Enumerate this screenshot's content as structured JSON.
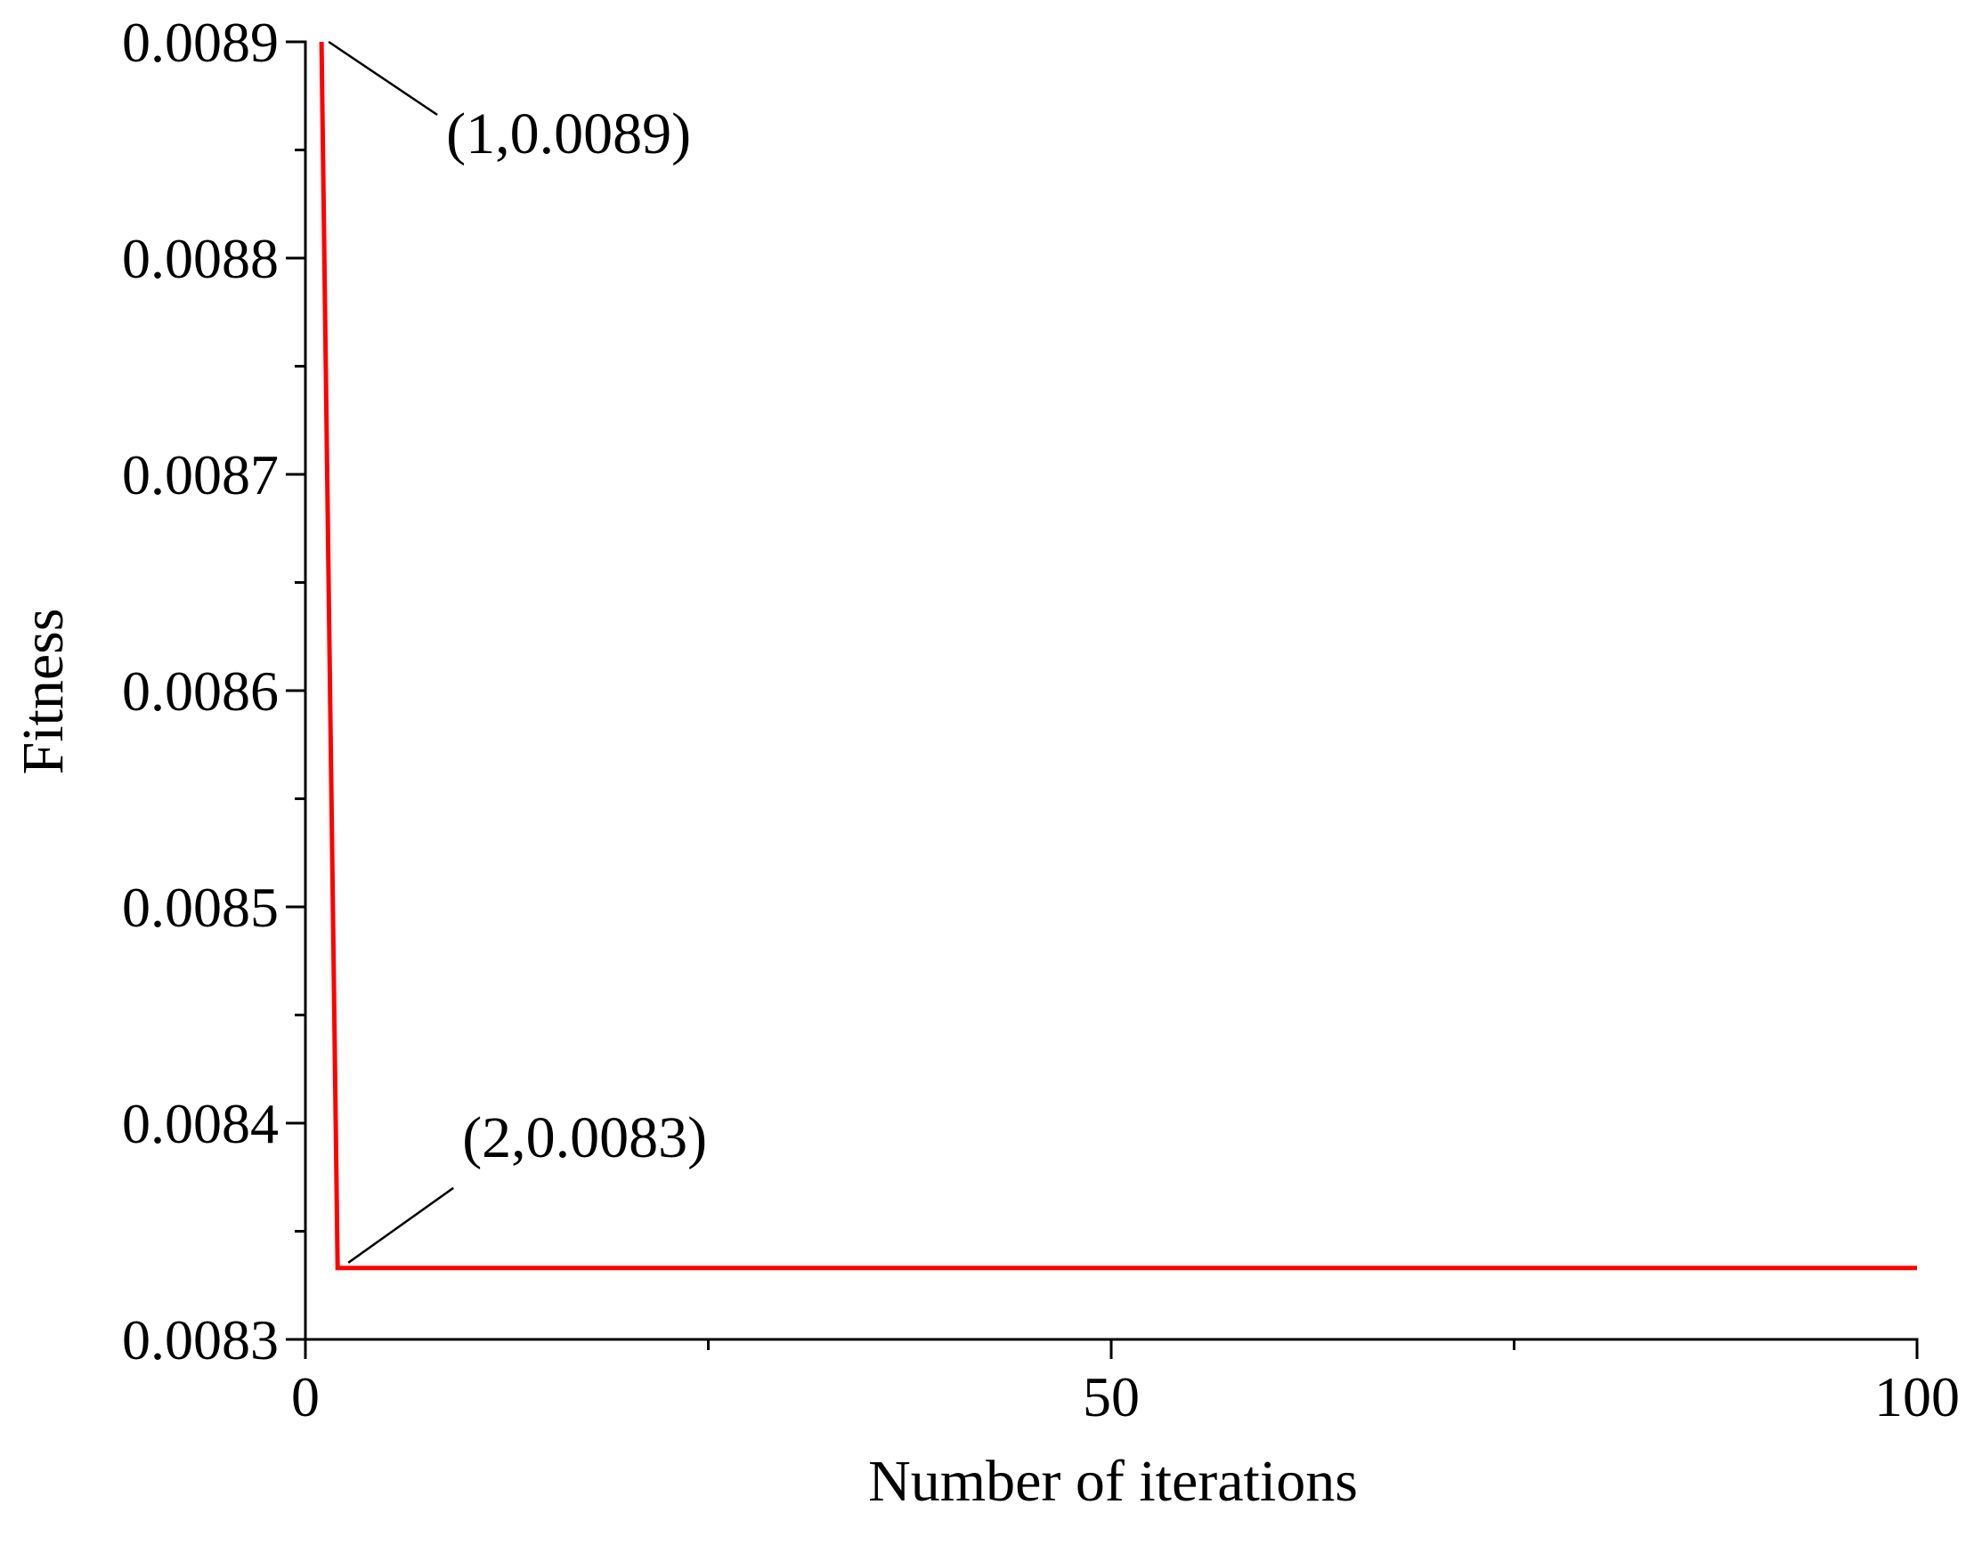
{
  "chart_data": {
    "type": "line",
    "title": "",
    "xlabel": "Number of iterations",
    "ylabel": "Fitness",
    "xlim": [
      0,
      100
    ],
    "ylim": [
      0.0083,
      0.0089
    ],
    "x_ticks": [
      0,
      50,
      100
    ],
    "x_tick_labels": [
      "0",
      "50",
      "100"
    ],
    "x_minor_ticks": [
      25,
      75
    ],
    "y_ticks": [
      0.0083,
      0.0084,
      0.0085,
      0.0086,
      0.0087,
      0.0088,
      0.0089
    ],
    "y_tick_labels": [
      "0.0083",
      "0.0084",
      "0.0085",
      "0.0086",
      "0.0087",
      "0.0088",
      "0.0089"
    ],
    "y_minor_ticks": [
      0.00835,
      0.00845,
      0.00855,
      0.00865,
      0.00875,
      0.00885
    ],
    "grid": false,
    "series": [
      {
        "color": "#ff0000",
        "x": [
          1,
          2,
          100
        ],
        "y": [
          0.0089,
          0.008333,
          0.008333
        ]
      }
    ],
    "annotations": [
      {
        "text": "(1,0.0089)",
        "point": [
          1,
          0.0089
        ]
      },
      {
        "text": "(2,0.0083)",
        "point": [
          2,
          0.008333
        ]
      }
    ]
  }
}
